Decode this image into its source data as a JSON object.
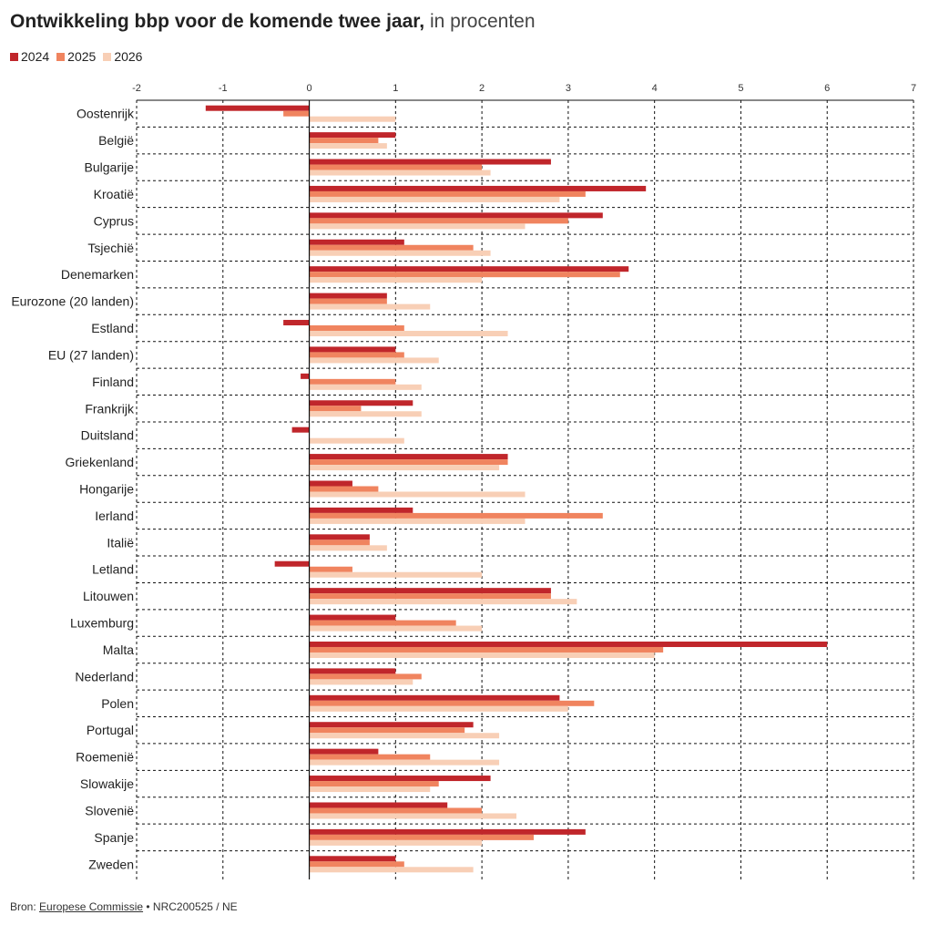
{
  "title": {
    "bold": "Ontwikkeling bbp voor de komende twee jaar,",
    "rest": " in procenten"
  },
  "colors": {
    "2024": "#c0262b",
    "2025": "#f0845f",
    "2026": "#f8cfb6"
  },
  "legend": [
    {
      "label": "2024",
      "color": "#c0262b"
    },
    {
      "label": "2025",
      "color": "#f0845f"
    },
    {
      "label": "2026",
      "color": "#f8cfb6"
    }
  ],
  "footer": {
    "prefix": "Bron: ",
    "link": "Europese Commissie",
    "suffix": " • NRC200525 / NE"
  },
  "chart_data": {
    "type": "bar",
    "orientation": "horizontal",
    "xlim": [
      -2,
      7
    ],
    "xticks": [
      -2,
      -1,
      0,
      1,
      2,
      3,
      4,
      5,
      6,
      7
    ],
    "grid": true,
    "legend_position": "top-left",
    "categories": [
      "Oostenrijk",
      "België",
      "Bulgarije",
      "Kroatië",
      "Cyprus",
      "Tsjechië",
      "Denemarken",
      "Eurozone (20 landen)",
      "Estland",
      "EU (27 landen)",
      "Finland",
      "Frankrijk",
      "Duitsland",
      "Griekenland",
      "Hongarije",
      "Ierland",
      "Italië",
      "Letland",
      "Litouwen",
      "Luxemburg",
      "Malta",
      "Nederland",
      "Polen",
      "Portugal",
      "Roemenië",
      "Slowakije",
      "Slovenië",
      "Spanje",
      "Zweden"
    ],
    "series": [
      {
        "name": "2024",
        "color": "#c0262b",
        "values": [
          -1.2,
          1.0,
          2.8,
          3.9,
          3.4,
          1.1,
          3.7,
          0.9,
          -0.3,
          1.0,
          -0.1,
          1.2,
          -0.2,
          2.3,
          0.5,
          1.2,
          0.7,
          -0.4,
          2.8,
          1.0,
          6.0,
          1.0,
          2.9,
          1.9,
          0.8,
          2.1,
          1.6,
          3.2,
          1.0
        ]
      },
      {
        "name": "2025",
        "color": "#f0845f",
        "values": [
          -0.3,
          0.8,
          2.0,
          3.2,
          3.0,
          1.9,
          3.6,
          0.9,
          1.1,
          1.1,
          1.0,
          0.6,
          0.0,
          2.3,
          0.8,
          3.4,
          0.7,
          0.5,
          2.8,
          1.7,
          4.1,
          1.3,
          3.3,
          1.8,
          1.4,
          1.5,
          2.0,
          2.6,
          1.1
        ]
      },
      {
        "name": "2026",
        "color": "#f8cfb6",
        "values": [
          1.0,
          0.9,
          2.1,
          2.9,
          2.5,
          2.1,
          2.0,
          1.4,
          2.3,
          1.5,
          1.3,
          1.3,
          1.1,
          2.2,
          2.5,
          2.5,
          0.9,
          2.0,
          3.1,
          2.0,
          4.0,
          1.2,
          3.0,
          2.2,
          2.2,
          1.4,
          2.4,
          2.0,
          1.9
        ]
      }
    ]
  }
}
